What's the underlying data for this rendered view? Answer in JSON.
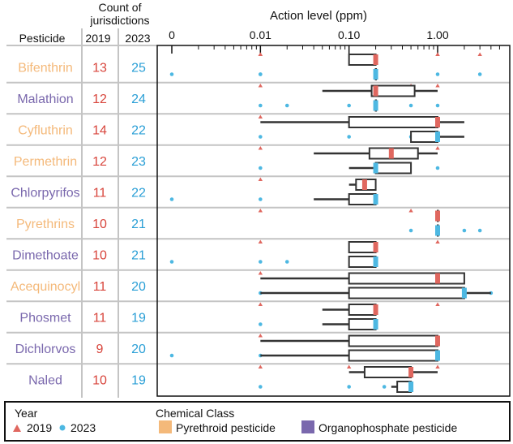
{
  "chart_data": {
    "type": "boxplot",
    "title": "Action level (ppm)",
    "header": {
      "count_label_line1": "Count of",
      "count_label_line2": "jurisdictions",
      "pesticide_label": "Pesticide",
      "year_2019": "2019",
      "year_2023": "2023"
    },
    "x_axis": {
      "scale": "log",
      "range": [
        0.001,
        5
      ],
      "tick_labels": [
        {
          "label": "0",
          "value": 0.001
        },
        {
          "label": "0.01",
          "value": 0.01
        },
        {
          "label": "0.10",
          "value": 0.1
        },
        {
          "label": "1.00",
          "value": 1.0
        }
      ]
    },
    "colors": {
      "year_2019": "#e0675f",
      "year_2023": "#4db8e2",
      "pyrethroid": "#f4b97a",
      "organophosphate": "#7a68ad",
      "count_2019": "#d8453c",
      "count_2023": "#2a9fd6",
      "grid": "#c4c4c4"
    },
    "legend": {
      "year_title": "Year",
      "year_2019": "2019",
      "year_2023": "2023",
      "class_title": "Chemical Class",
      "pyrethroid": "Pyrethroid pesticide",
      "organophosphate": "Organophosphate pesticide"
    },
    "rows": [
      {
        "name": "Bifenthrin",
        "class": "pyrethroid",
        "count_2019": "13",
        "count_2023": "25",
        "box_2019": {
          "wmin": 0.1,
          "q1": 0.1,
          "median": 0.2,
          "q3": 0.2,
          "wmax": 0.2
        },
        "box_2023": {
          "wmin": 0.2,
          "q1": 0.2,
          "median": 0.2,
          "q3": 0.2,
          "wmax": 0.2
        },
        "points_2019": [
          0.01,
          0.01,
          0.01,
          1.0,
          1.0,
          3.0
        ],
        "points_2023": [
          0.001,
          0.01,
          0.01,
          1.0,
          3.0
        ]
      },
      {
        "name": "Malathion",
        "class": "organophosphate",
        "count_2019": "12",
        "count_2023": "24",
        "box_2019": {
          "wmin": 0.05,
          "q1": 0.18,
          "median": 0.2,
          "q3": 0.55,
          "wmax": 1.0
        },
        "box_2023": {
          "wmin": 0.2,
          "q1": 0.2,
          "median": 0.2,
          "q3": 0.2,
          "wmax": 0.2
        },
        "points_2019": [
          0.01,
          0.5,
          1.0
        ],
        "points_2023": [
          0.01,
          0.02,
          0.1,
          0.5,
          1.0
        ]
      },
      {
        "name": "Cyfluthrin",
        "class": "pyrethroid",
        "count_2019": "14",
        "count_2023": "22",
        "box_2019": {
          "wmin": 0.01,
          "q1": 0.1,
          "median": 1.0,
          "q3": 1.0,
          "wmax": 2.0
        },
        "box_2023": {
          "wmin": 0.5,
          "q1": 0.5,
          "median": 1.0,
          "q3": 1.0,
          "wmax": 2.0
        },
        "points_2019": [
          0.01
        ],
        "points_2023": [
          0.01,
          0.1,
          0.5
        ]
      },
      {
        "name": "Permethrin",
        "class": "pyrethroid",
        "count_2019": "12",
        "count_2023": "23",
        "box_2019": {
          "wmin": 0.04,
          "q1": 0.17,
          "median": 0.3,
          "q3": 0.6,
          "wmax": 1.0
        },
        "box_2023": {
          "wmin": 0.1,
          "q1": 0.2,
          "median": 0.2,
          "q3": 0.5,
          "wmax": 0.5
        },
        "points_2019": [
          0.01,
          1.0
        ],
        "points_2023": [
          0.01,
          1.0
        ]
      },
      {
        "name": "Chlorpyrifos",
        "class": "organophosphate",
        "count_2019": "11",
        "count_2023": "22",
        "box_2019": {
          "wmin": 0.1,
          "q1": 0.12,
          "median": 0.15,
          "q3": 0.2,
          "wmax": 0.2
        },
        "box_2023": {
          "wmin": 0.04,
          "q1": 0.1,
          "median": 0.2,
          "q3": 0.2,
          "wmax": 0.2
        },
        "points_2019": [
          0.01
        ],
        "points_2023": [
          0.001,
          0.01
        ]
      },
      {
        "name": "Pyrethrins",
        "class": "pyrethroid",
        "count_2019": "10",
        "count_2023": "21",
        "box_2019": {
          "wmin": 1.0,
          "q1": 1.0,
          "median": 1.0,
          "q3": 1.0,
          "wmax": 1.0
        },
        "box_2023": {
          "wmin": 1.0,
          "q1": 1.0,
          "median": 1.0,
          "q3": 1.0,
          "wmax": 1.0
        },
        "points_2019": [
          0.01,
          0.5
        ],
        "points_2023": [
          0.5,
          2.0,
          3.0
        ]
      },
      {
        "name": "Dimethoate",
        "class": "organophosphate",
        "count_2019": "10",
        "count_2023": "21",
        "box_2019": {
          "wmin": 0.1,
          "q1": 0.1,
          "median": 0.2,
          "q3": 0.2,
          "wmax": 0.2
        },
        "box_2023": {
          "wmin": 0.1,
          "q1": 0.1,
          "median": 0.2,
          "q3": 0.2,
          "wmax": 0.2
        },
        "points_2019": [
          0.01,
          1.0
        ],
        "points_2023": [
          0.001,
          0.01,
          0.02
        ]
      },
      {
        "name": "Acequinocyl",
        "class": "pyrethroid",
        "count_2019": "11",
        "count_2023": "20",
        "box_2019": {
          "wmin": 0.01,
          "q1": 0.1,
          "median": 1.0,
          "q3": 2.0,
          "wmax": 2.0
        },
        "box_2023": {
          "wmin": 0.01,
          "q1": 0.1,
          "median": 2.0,
          "q3": 2.0,
          "wmax": 4.0
        },
        "points_2019": [
          0.01
        ],
        "points_2023": [
          0.01,
          4.0
        ]
      },
      {
        "name": "Phosmet",
        "class": "organophosphate",
        "count_2019": "11",
        "count_2023": "19",
        "box_2019": {
          "wmin": 0.05,
          "q1": 0.1,
          "median": 0.2,
          "q3": 0.2,
          "wmax": 0.2
        },
        "box_2023": {
          "wmin": 0.05,
          "q1": 0.1,
          "median": 0.2,
          "q3": 0.2,
          "wmax": 0.2
        },
        "points_2019": [
          0.01,
          1.0
        ],
        "points_2023": [
          0.01
        ]
      },
      {
        "name": "Dichlorvos",
        "class": "organophosphate",
        "count_2019": "9",
        "count_2023": "20",
        "box_2019": {
          "wmin": 0.01,
          "q1": 0.1,
          "median": 1.0,
          "q3": 1.0,
          "wmax": 1.0
        },
        "box_2023": {
          "wmin": 0.01,
          "q1": 0.1,
          "median": 1.0,
          "q3": 1.0,
          "wmax": 1.0
        },
        "points_2019": [
          0.01
        ],
        "points_2023": [
          0.001,
          0.01
        ]
      },
      {
        "name": "Naled",
        "class": "organophosphate",
        "count_2019": "10",
        "count_2023": "19",
        "box_2019": {
          "wmin": 0.1,
          "q1": 0.15,
          "median": 0.5,
          "q3": 0.5,
          "wmax": 1.0
        },
        "box_2023": {
          "wmin": 0.3,
          "q1": 0.35,
          "median": 0.5,
          "q3": 0.5,
          "wmax": 0.5
        },
        "points_2019": [
          0.01,
          0.1,
          1.0
        ],
        "points_2023": [
          0.01,
          0.1,
          0.25
        ]
      }
    ]
  }
}
